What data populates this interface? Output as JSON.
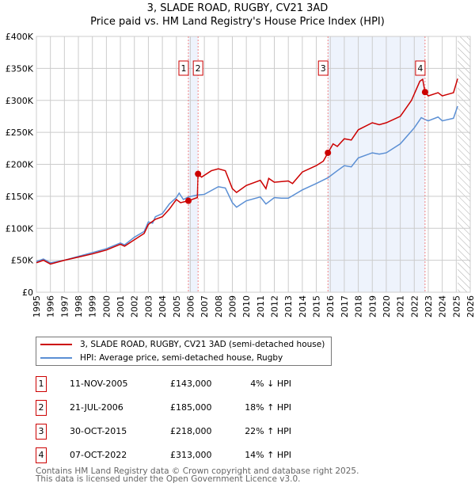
{
  "title": "3, SLADE ROAD, RUGBY, CV21 3AD",
  "subtitle": "Price paid vs. HM Land Registry's House Price Index (HPI)",
  "chart_data": {
    "type": "line",
    "title": "3, SLADE ROAD, RUGBY, CV21 3AD",
    "subtitle": "Price paid vs. HM Land Registry's House Price Index (HPI)",
    "xlim": [
      1995,
      2026
    ],
    "ylim": [
      0,
      400000
    ],
    "x_ticks": [
      "1995",
      "1996",
      "1997",
      "1998",
      "1999",
      "2000",
      "2001",
      "2002",
      "2003",
      "2004",
      "2005",
      "2006",
      "2007",
      "2008",
      "2009",
      "2010",
      "2011",
      "2012",
      "2013",
      "2014",
      "2015",
      "2016",
      "2017",
      "2018",
      "2019",
      "2020",
      "2021",
      "2022",
      "2023",
      "2024",
      "2025",
      "2026"
    ],
    "y_ticks": [
      {
        "v": 0,
        "label": "£0"
      },
      {
        "v": 50000,
        "label": "£50K"
      },
      {
        "v": 100000,
        "label": "£100K"
      },
      {
        "v": 150000,
        "label": "£150K"
      },
      {
        "v": 200000,
        "label": "£200K"
      },
      {
        "v": 250000,
        "label": "£250K"
      },
      {
        "v": 300000,
        "label": "£300K"
      },
      {
        "v": 350000,
        "label": "£350K"
      },
      {
        "v": 400000,
        "label": "£400K"
      }
    ],
    "grid": true,
    "legend_placement": "below",
    "shaded_periods": [
      [
        2005.86,
        2006.55
      ],
      [
        2015.83,
        2022.77
      ]
    ],
    "forecast_hatch_from": 2025.1,
    "series": [
      {
        "name": "3, SLADE ROAD, RUGBY, CV21 3AD (semi-detached house)",
        "color": "#cc0000",
        "points": [
          [
            1995,
            46
          ],
          [
            1995.5,
            50
          ],
          [
            1996,
            44
          ],
          [
            1997,
            50
          ],
          [
            1998,
            55
          ],
          [
            1999,
            60
          ],
          [
            2000,
            66
          ],
          [
            2001,
            75
          ],
          [
            2001.3,
            72
          ],
          [
            2002,
            82
          ],
          [
            2002.7,
            92
          ],
          [
            2003,
            106
          ],
          [
            2003.5,
            114
          ],
          [
            2004,
            118
          ],
          [
            2004.5,
            130
          ],
          [
            2005,
            145
          ],
          [
            2005.3,
            140
          ],
          [
            2005.86,
            143
          ],
          [
            2006.5,
            148
          ],
          [
            2006.55,
            185
          ],
          [
            2006.8,
            180
          ],
          [
            2007.5,
            190
          ],
          [
            2008,
            193
          ],
          [
            2008.5,
            190
          ],
          [
            2009,
            162
          ],
          [
            2009.3,
            156
          ],
          [
            2010,
            167
          ],
          [
            2011,
            175
          ],
          [
            2011.4,
            162
          ],
          [
            2011.6,
            178
          ],
          [
            2012,
            172
          ],
          [
            2013,
            174
          ],
          [
            2013.3,
            170
          ],
          [
            2014,
            188
          ],
          [
            2015,
            198
          ],
          [
            2015.5,
            205
          ],
          [
            2015.83,
            218
          ],
          [
            2016.2,
            232
          ],
          [
            2016.5,
            228
          ],
          [
            2017,
            240
          ],
          [
            2017.5,
            238
          ],
          [
            2018,
            254
          ],
          [
            2019,
            265
          ],
          [
            2019.5,
            262
          ],
          [
            2020,
            265
          ],
          [
            2021,
            275
          ],
          [
            2021.8,
            300
          ],
          [
            2022.4,
            330
          ],
          [
            2022.6,
            333
          ],
          [
            2022.77,
            313
          ],
          [
            2023,
            307
          ],
          [
            2023.7,
            312
          ],
          [
            2024,
            307
          ],
          [
            2024.8,
            312
          ],
          [
            2025.1,
            334
          ]
        ]
      },
      {
        "name": "HPI: Average price, semi-detached house, Rugby",
        "color": "#5b8fd4",
        "points": [
          [
            1995,
            48
          ],
          [
            1995.5,
            52
          ],
          [
            1996,
            46
          ],
          [
            1997,
            50
          ],
          [
            1998,
            56
          ],
          [
            1999,
            62
          ],
          [
            2000,
            68
          ],
          [
            2001,
            77
          ],
          [
            2001.3,
            74
          ],
          [
            2002,
            86
          ],
          [
            2002.7,
            95
          ],
          [
            2003,
            110
          ],
          [
            2003.3,
            108
          ],
          [
            2003.5,
            118
          ],
          [
            2004,
            123
          ],
          [
            2004.5,
            138
          ],
          [
            2005,
            148
          ],
          [
            2005.2,
            155
          ],
          [
            2005.5,
            145
          ],
          [
            2005.86,
            149
          ],
          [
            2006.5,
            152
          ],
          [
            2007,
            153
          ],
          [
            2008,
            165
          ],
          [
            2008.5,
            163
          ],
          [
            2009,
            140
          ],
          [
            2009.3,
            133
          ],
          [
            2010,
            143
          ],
          [
            2011,
            149
          ],
          [
            2011.4,
            138
          ],
          [
            2012,
            148
          ],
          [
            2012.5,
            147
          ],
          [
            2013,
            147
          ],
          [
            2014,
            160
          ],
          [
            2015,
            170
          ],
          [
            2015.83,
            179
          ],
          [
            2016.5,
            190
          ],
          [
            2017,
            198
          ],
          [
            2017.5,
            196
          ],
          [
            2018,
            210
          ],
          [
            2019,
            218
          ],
          [
            2019.5,
            216
          ],
          [
            2020,
            218
          ],
          [
            2021,
            232
          ],
          [
            2022,
            257
          ],
          [
            2022.5,
            273
          ],
          [
            2022.77,
            270
          ],
          [
            2023,
            268
          ],
          [
            2023.7,
            274
          ],
          [
            2024,
            268
          ],
          [
            2024.8,
            272
          ],
          [
            2025.1,
            291
          ]
        ]
      }
    ],
    "sales": [
      {
        "n": "1",
        "x": 2005.86,
        "y": 143
      },
      {
        "n": "2",
        "x": 2006.55,
        "y": 185
      },
      {
        "n": "3",
        "x": 2015.83,
        "y": 218
      },
      {
        "n": "4",
        "x": 2022.77,
        "y": 313
      }
    ]
  },
  "legend": [
    "3, SLADE ROAD, RUGBY, CV21 3AD (semi-detached house)",
    "HPI: Average price, semi-detached house, Rugby"
  ],
  "transactions": [
    {
      "n": "1",
      "date": "11-NOV-2005",
      "price": "£143,000",
      "hpi": "4% ↓ HPI"
    },
    {
      "n": "2",
      "date": "21-JUL-2006",
      "price": "£185,000",
      "hpi": "18% ↑ HPI"
    },
    {
      "n": "3",
      "date": "30-OCT-2015",
      "price": "£218,000",
      "hpi": "22% ↑ HPI"
    },
    {
      "n": "4",
      "date": "07-OCT-2022",
      "price": "£313,000",
      "hpi": "14% ↑ HPI"
    }
  ],
  "footer": [
    "Contains HM Land Registry data © Crown copyright and database right 2025.",
    "This data is licensed under the Open Government Licence v3.0."
  ]
}
